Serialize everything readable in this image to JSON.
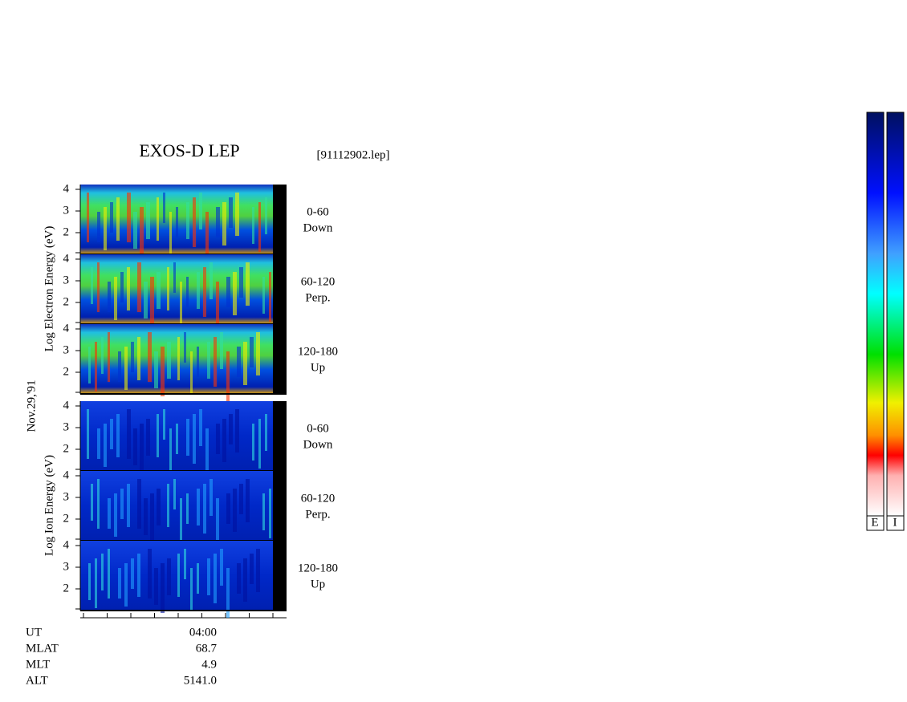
{
  "header": {
    "title": "EXOS-D LEP",
    "file": "[91112902.lep]"
  },
  "date": "Nov.29,'91",
  "tick_labels": [
    "4",
    "3",
    "2"
  ],
  "groups": [
    {
      "axis_label": "Log Electron Energy (eV)",
      "panels": [
        {
          "angle": "0-60",
          "direction": "Down"
        },
        {
          "angle": "60-120",
          "direction": "Perp."
        },
        {
          "angle": "120-180",
          "direction": "Up"
        }
      ]
    },
    {
      "axis_label": "Log Ion Energy (eV)",
      "panels": [
        {
          "angle": "0-60",
          "direction": "Down"
        },
        {
          "angle": "60-120",
          "direction": "Perp."
        },
        {
          "angle": "120-180",
          "direction": "Up"
        }
      ]
    }
  ],
  "info": {
    "labels": [
      "UT",
      "MLAT",
      "MLT",
      "ALT"
    ],
    "values": [
      "04:00",
      "68.7",
      "4.9",
      "5141.0"
    ]
  },
  "colorbars": [
    "E",
    "I"
  ]
}
